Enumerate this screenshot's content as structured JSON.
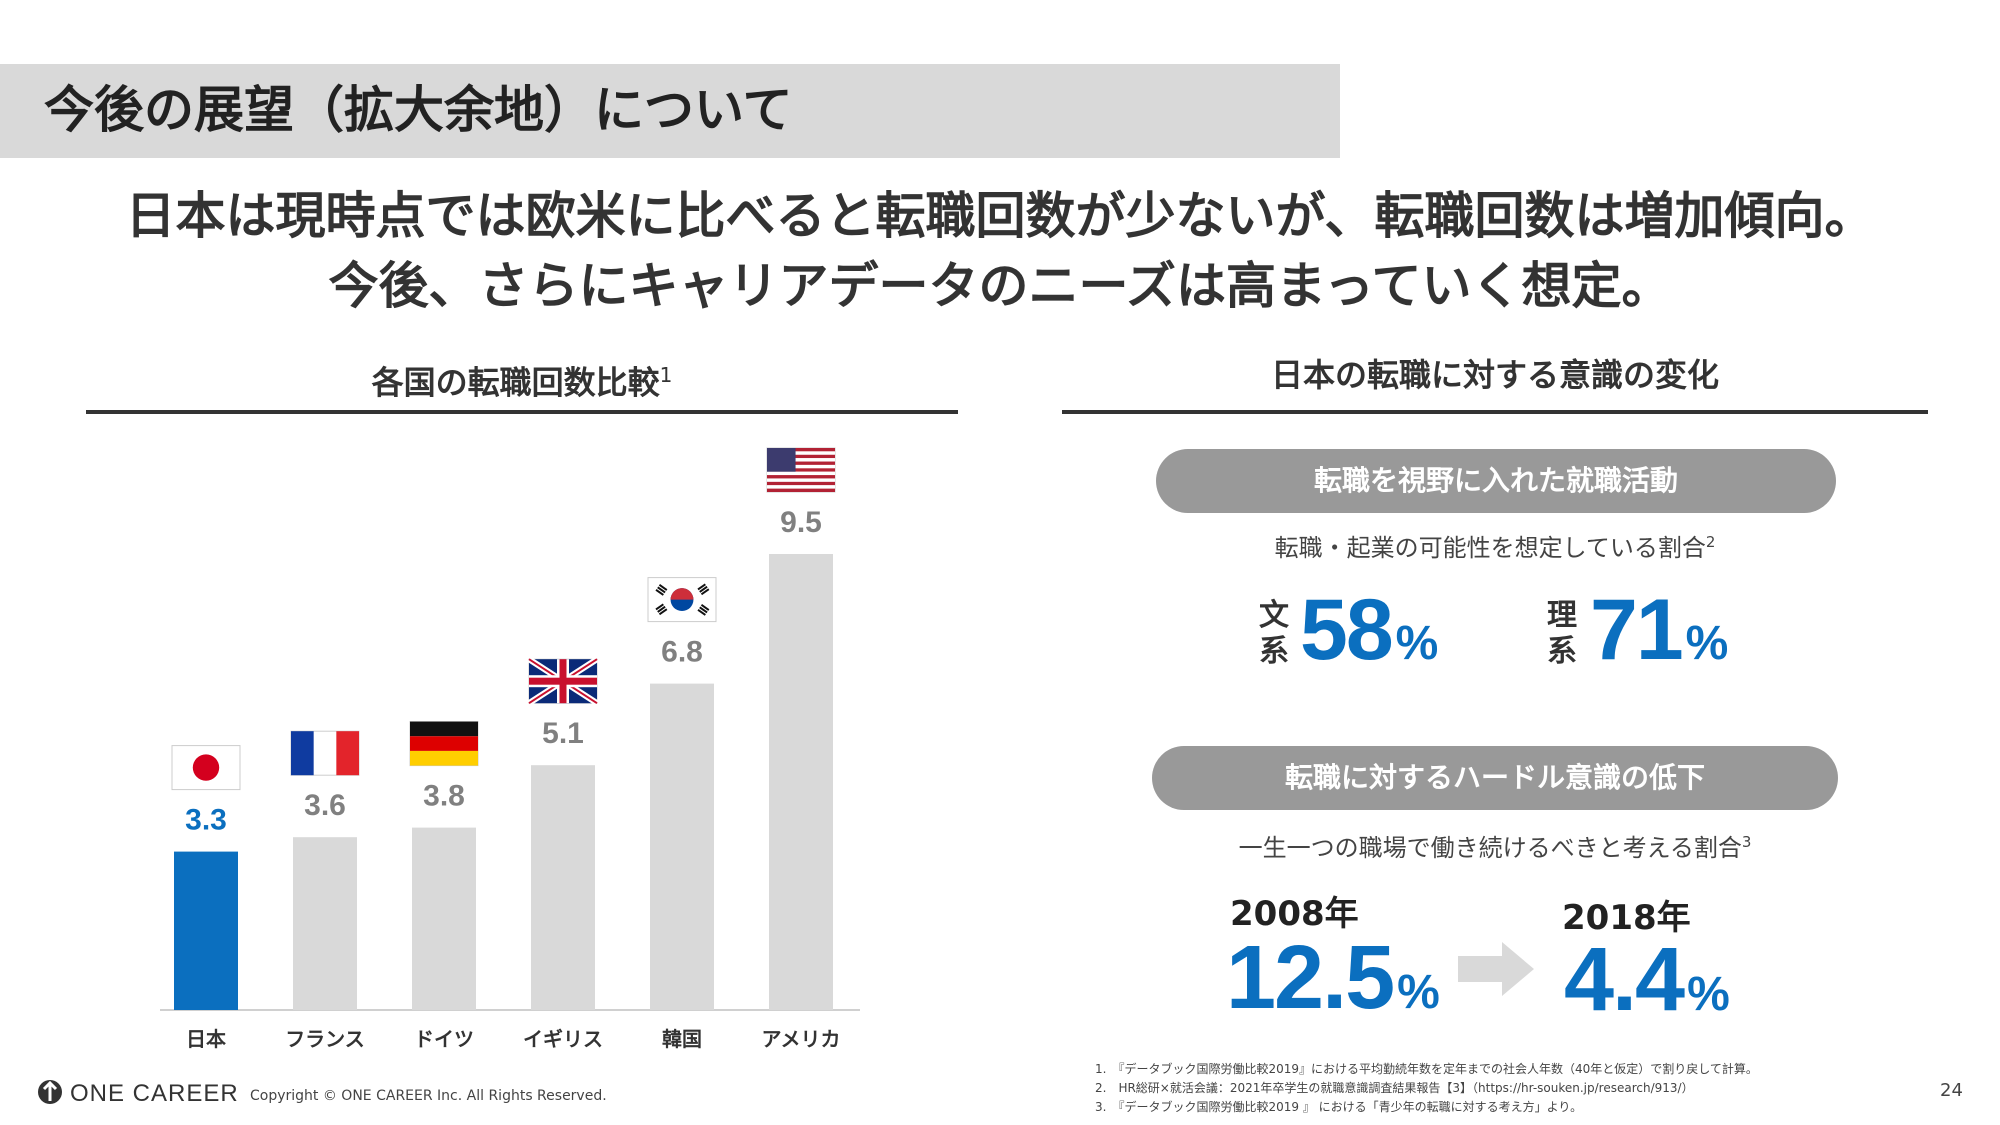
{
  "title": "今後の展望（拡大余地）について",
  "headline": {
    "line1": "日本は現時点では欧米に比べると転職回数が少ないが、転職回数は増加傾向。",
    "line2": "今後、さらにキャリアデータのニーズは高まっていく想定。"
  },
  "left_section": {
    "title": "各国の転職回数比較",
    "note_ref": "1"
  },
  "chart_data": {
    "type": "bar",
    "categories": [
      "日本",
      "フランス",
      "ドイツ",
      "イギリス",
      "韓国",
      "アメリカ"
    ],
    "values": [
      3.3,
      3.6,
      3.8,
      5.1,
      6.8,
      9.5
    ],
    "value_labels": [
      "3.3",
      "3.6",
      "3.8",
      "5.1",
      "6.8",
      "9.5"
    ],
    "flags": [
      "japan-flag-icon",
      "france-flag-icon",
      "germany-flag-icon",
      "uk-flag-icon",
      "korea-flag-icon",
      "usa-flag-icon"
    ],
    "highlight_index": 0,
    "colors": {
      "highlight": "#0b6fbf",
      "bar": "#d9d9d9",
      "label": "#808080"
    },
    "title": "",
    "xlabel": "",
    "ylabel": "",
    "ylim": [
      0,
      10
    ],
    "grid": false,
    "legend": "none"
  },
  "right_section": {
    "title": "日本の転職に対する意識の変化",
    "block1": {
      "pill": "転職を視野に入れた就職活動",
      "subtitle": "転職・起業の可能性を想定している割合",
      "note_ref": "2",
      "items": [
        {
          "label": "文系",
          "value": "58",
          "unit": "%"
        },
        {
          "label": "理系",
          "value": "71",
          "unit": "%"
        }
      ]
    },
    "block2": {
      "pill": "転職に対するハードル意識の低下",
      "subtitle": "一生一つの職場で働き続けるべきと考える割合",
      "note_ref": "3",
      "from": {
        "year": "2008年",
        "value": "12.5",
        "unit": "%"
      },
      "to": {
        "year": "2018年",
        "value": "4.4",
        "unit": "%"
      }
    }
  },
  "footer": {
    "brand": "ONE CAREER",
    "copyright": "Copyright © ONE CAREER Inc. All Rights Reserved.",
    "page_number": "24",
    "notes": [
      "1.　『データブック国際労働比較2019』における平均勤続年数を定年までの社会人年数（40年と仮定）で割り戻して計算。",
      "2.　HR総研×就活会議：2021年卒学生の就職意識調査結果報告【3】（https://hr-souken.jp/research/913/）",
      "3.　『データブック国際労働比較2019 』 における「青少年の転職に対する考え方」より。"
    ]
  },
  "colors": {
    "accent": "#0b6fbf",
    "pill": "#999999",
    "band": "#d9d9d9",
    "text": "#333333"
  }
}
